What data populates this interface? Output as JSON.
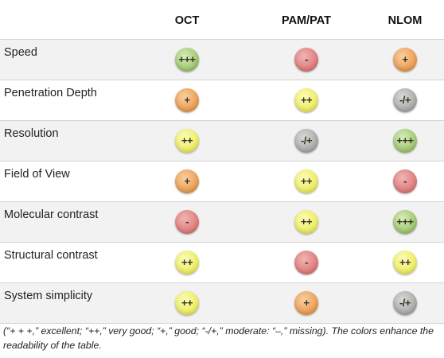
{
  "table": {
    "columns": [
      "OCT",
      "PAM/PAT",
      "NLOM"
    ],
    "rows": [
      {
        "label": "Speed",
        "values": [
          "+++",
          "-",
          "+"
        ],
        "levels": [
          "ex",
          "ms",
          "gd"
        ]
      },
      {
        "label": "Penetration Depth",
        "values": [
          "+",
          "++",
          "-/+"
        ],
        "levels": [
          "gd",
          "vg",
          "md"
        ]
      },
      {
        "label": "Resolution",
        "values": [
          "++",
          "-/+",
          "+++"
        ],
        "levels": [
          "vg",
          "md",
          "ex"
        ]
      },
      {
        "label": "Field of View",
        "values": [
          "+",
          "++",
          "-"
        ],
        "levels": [
          "gd",
          "vg",
          "ms"
        ]
      },
      {
        "label": "Molecular contrast",
        "values": [
          "-",
          "++",
          "+++"
        ],
        "levels": [
          "ms",
          "vg",
          "ex"
        ]
      },
      {
        "label": "Structural contrast",
        "values": [
          "++",
          "-",
          "++"
        ],
        "levels": [
          "vg",
          "ms",
          "vg"
        ]
      },
      {
        "label": "System simplicity",
        "values": [
          "++",
          "+",
          "-/+"
        ],
        "levels": [
          "vg",
          "gd",
          "md"
        ]
      }
    ]
  },
  "colors": {
    "excellent": "#9cc56b",
    "very_good": "#ecec5e",
    "good": "#ea9a4f",
    "moderate": "#a7a7a7",
    "missing": "#dd7878"
  },
  "caption": "(“+ + +,” excellent; “++,” very good; “+,” good; “-/+,” moderate: “–,” missing). The colors enhance the readability of the table."
}
